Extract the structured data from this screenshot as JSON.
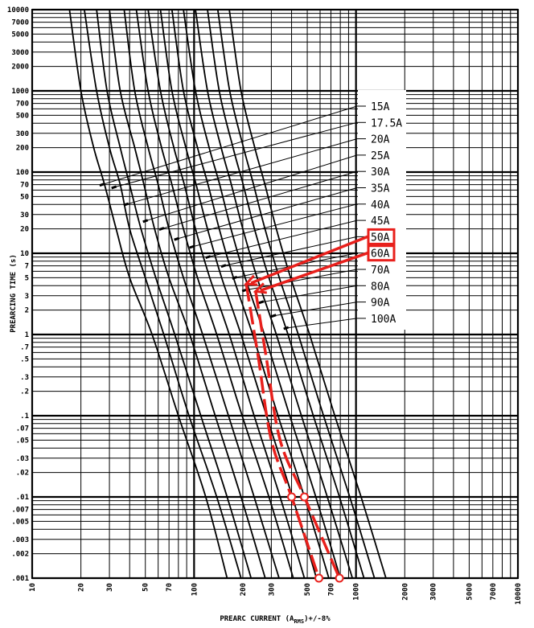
{
  "chart_data": {
    "type": "line",
    "xscale": "log",
    "yscale": "log",
    "xlim": [
      10,
      10000
    ],
    "ylim": [
      0.001,
      10000
    ],
    "grid": true,
    "xlabel": "PREARC CURRENT (A",
    "xlabel_sub": "RMS",
    "xlabel_suffix": ")+/-8%",
    "ylabel": "PREARCING TIME (s)",
    "x_tick_labels": [
      {
        "value": 10,
        "label": "10"
      },
      {
        "value": 20,
        "label": "20"
      },
      {
        "value": 30,
        "label": "30"
      },
      {
        "value": 50,
        "label": "50"
      },
      {
        "value": 70,
        "label": "70"
      },
      {
        "value": 100,
        "label": "100"
      },
      {
        "value": 200,
        "label": "200"
      },
      {
        "value": 300,
        "label": "300"
      },
      {
        "value": 500,
        "label": "500"
      },
      {
        "value": 700,
        "label": "700"
      },
      {
        "value": 1000,
        "label": "1000"
      },
      {
        "value": 2000,
        "label": "2000"
      },
      {
        "value": 3000,
        "label": "3000"
      },
      {
        "value": 5000,
        "label": "5000"
      },
      {
        "value": 7000,
        "label": "7000"
      },
      {
        "value": 10000,
        "label": "10000"
      }
    ],
    "y_tick_labels": [
      {
        "value": 10000,
        "label": "10000"
      },
      {
        "value": 7000,
        "label": "7000"
      },
      {
        "value": 5000,
        "label": "5000"
      },
      {
        "value": 3000,
        "label": "3000"
      },
      {
        "value": 2000,
        "label": "2000"
      },
      {
        "value": 1000,
        "label": "1000"
      },
      {
        "value": 700,
        "label": "700"
      },
      {
        "value": 500,
        "label": "500"
      },
      {
        "value": 300,
        "label": "300"
      },
      {
        "value": 200,
        "label": "200"
      },
      {
        "value": 100,
        "label": "100"
      },
      {
        "value": 70,
        "label": "70"
      },
      {
        "value": 50,
        "label": "50"
      },
      {
        "value": 30,
        "label": "30"
      },
      {
        "value": 20,
        "label": "20"
      },
      {
        "value": 10,
        "label": "10"
      },
      {
        "value": 7,
        "label": "7"
      },
      {
        "value": 5,
        "label": "5"
      },
      {
        "value": 3,
        "label": "3"
      },
      {
        "value": 2,
        "label": "2"
      },
      {
        "value": 1,
        "label": "1"
      },
      {
        "value": 0.7,
        "label": ".7"
      },
      {
        "value": 0.5,
        "label": ".5"
      },
      {
        "value": 0.3,
        "label": ".3"
      },
      {
        "value": 0.2,
        "label": ".2"
      },
      {
        "value": 0.1,
        "label": ".1"
      },
      {
        "value": 0.07,
        "label": ".07"
      },
      {
        "value": 0.05,
        "label": ".05"
      },
      {
        "value": 0.03,
        "label": ".03"
      },
      {
        "value": 0.02,
        "label": ".02"
      },
      {
        "value": 0.01,
        "label": ".01"
      },
      {
        "value": 0.007,
        "label": ".007"
      },
      {
        "value": 0.005,
        "label": ".005"
      },
      {
        "value": 0.003,
        "label": ".003"
      },
      {
        "value": 0.002,
        "label": ".002"
      },
      {
        "value": 0.001,
        "label": ".001"
      }
    ],
    "series": [
      {
        "name": "15A",
        "color": "#000000",
        "x": [
          17,
          20,
          24,
          28,
          33,
          40,
          55,
          80,
          118,
          160
        ],
        "y": [
          10000,
          1000,
          200,
          70,
          20,
          5,
          1,
          0.1,
          0.01,
          0.001
        ]
      },
      {
        "name": "17.5A",
        "color": "#000000",
        "x": [
          21,
          25,
          30,
          35,
          40,
          50,
          65,
          93,
          138,
          195
        ],
        "y": [
          10000,
          1000,
          200,
          70,
          20,
          5,
          1,
          0.1,
          0.01,
          0.001
        ]
      },
      {
        "name": "20A",
        "color": "#000000",
        "x": [
          25,
          29,
          35,
          40,
          47,
          58,
          76,
          110,
          160,
          225
        ],
        "y": [
          10000,
          1000,
          200,
          70,
          20,
          5,
          1,
          0.1,
          0.01,
          0.001
        ]
      },
      {
        "name": "25A",
        "color": "#000000",
        "x": [
          30,
          35,
          43,
          49,
          57,
          70,
          94,
          135,
          195,
          275
        ],
        "y": [
          10000,
          1000,
          200,
          70,
          20,
          5,
          1,
          0.1,
          0.01,
          0.001
        ]
      },
      {
        "name": "30A",
        "color": "#000000",
        "x": [
          37,
          43,
          52,
          60,
          70,
          86,
          113,
          163,
          235,
          335
        ],
        "y": [
          10000,
          1000,
          200,
          70,
          20,
          5,
          1,
          0.1,
          0.01,
          0.001
        ]
      },
      {
        "name": "35A",
        "color": "#000000",
        "x": [
          44,
          52,
          63,
          73,
          86,
          105,
          138,
          198,
          290,
          410
        ],
        "y": [
          10000,
          1000,
          200,
          70,
          20,
          5,
          1,
          0.1,
          0.01,
          0.001
        ]
      },
      {
        "name": "40A",
        "color": "#000000",
        "x": [
          52,
          62,
          75,
          87,
          102,
          125,
          165,
          235,
          340,
          480
        ],
        "y": [
          10000,
          1000,
          200,
          70,
          20,
          5,
          1,
          0.1,
          0.01,
          0.001
        ]
      },
      {
        "name": "45A",
        "color": "#000000",
        "x": [
          62,
          73,
          89,
          103,
          121,
          148,
          195,
          280,
          405,
          570
        ],
        "y": [
          10000,
          1000,
          200,
          70,
          20,
          5,
          1,
          0.1,
          0.01,
          0.001
        ]
      },
      {
        "name": "50A",
        "color": "#000000",
        "x": [
          73,
          86,
          105,
          122,
          143,
          175,
          230,
          330,
          480,
          680
        ],
        "y": [
          10000,
          1000,
          200,
          70,
          20,
          5,
          1,
          0.1,
          0.01,
          0.001
        ]
      },
      {
        "name": "60A",
        "color": "#000000",
        "x": [
          86,
          102,
          124,
          144,
          169,
          207,
          272,
          390,
          565,
          800
        ],
        "y": [
          10000,
          1000,
          200,
          70,
          20,
          5,
          1,
          0.1,
          0.01,
          0.001
        ]
      },
      {
        "name": "70A",
        "color": "#000000",
        "x": [
          102,
          121,
          147,
          170,
          200,
          245,
          322,
          460,
          665,
          950
        ],
        "y": [
          10000,
          1000,
          200,
          70,
          20,
          5,
          1,
          0.1,
          0.01,
          0.001
        ]
      },
      {
        "name": "80A",
        "color": "#000000",
        "x": [
          121,
          143,
          174,
          201,
          236,
          290,
          380,
          545,
          790,
          1120
        ],
        "y": [
          10000,
          1000,
          200,
          70,
          20,
          5,
          1,
          0.1,
          0.01,
          0.001
        ]
      },
      {
        "name": "90A",
        "color": "#000000",
        "x": [
          140,
          166,
          202,
          233,
          274,
          336,
          440,
          630,
          915,
          1300
        ],
        "y": [
          10000,
          1000,
          200,
          70,
          20,
          5,
          1,
          0.1,
          0.01,
          0.001
        ]
      },
      {
        "name": "100A",
        "color": "#000000",
        "x": [
          165,
          195,
          237,
          274,
          322,
          395,
          517,
          740,
          1075,
          1530
        ],
        "y": [
          10000,
          1000,
          200,
          70,
          20,
          5,
          1,
          0.1,
          0.01,
          0.001
        ]
      }
    ],
    "legend": {
      "placement": "right",
      "leader_targets": [
        {
          "label": "15A",
          "x": 27,
          "y": 70
        },
        {
          "label": "17.5A",
          "x": 32,
          "y": 65
        },
        {
          "label": "20A",
          "x": 38,
          "y": 40
        },
        {
          "label": "25A",
          "x": 50,
          "y": 25
        },
        {
          "label": "30A",
          "x": 63,
          "y": 20
        },
        {
          "label": "35A",
          "x": 78,
          "y": 15
        },
        {
          "label": "40A",
          "x": 97,
          "y": 12
        },
        {
          "label": "45A",
          "x": 122,
          "y": 9
        },
        {
          "label": "50A",
          "x": 152,
          "y": 7
        },
        {
          "label": "60A",
          "x": 178,
          "y": 5
        },
        {
          "label": "70A",
          "x": 205,
          "y": 3.5
        },
        {
          "label": "80A",
          "x": 260,
          "y": 2.5
        },
        {
          "label": "90A",
          "x": 310,
          "y": 1.7
        },
        {
          "label": "100A",
          "x": 370,
          "y": 1.2
        }
      ]
    },
    "highlight": {
      "color": "#e8201c",
      "boxed_labels": [
        "50A",
        "60A"
      ],
      "arrow_tips": [
        {
          "label": "50A",
          "x": 210,
          "y": 4.2
        },
        {
          "label": "60A",
          "x": 240,
          "y": 3.4
        }
      ],
      "dashed_traces": [
        {
          "label": "50A",
          "x": [
            210,
            250,
            300,
            400,
            590
          ],
          "y": [
            4.2,
            0.5,
            0.05,
            0.01,
            0.001
          ]
        },
        {
          "label": "60A",
          "x": [
            240,
            280,
            340,
            480,
            790
          ],
          "y": [
            3.4,
            0.5,
            0.05,
            0.01,
            0.001
          ]
        }
      ],
      "circle_markers": [
        {
          "x": 400,
          "y": 0.01
        },
        {
          "x": 480,
          "y": 0.01
        },
        {
          "x": 590,
          "y": 0.001
        },
        {
          "x": 790,
          "y": 0.001
        }
      ]
    }
  }
}
